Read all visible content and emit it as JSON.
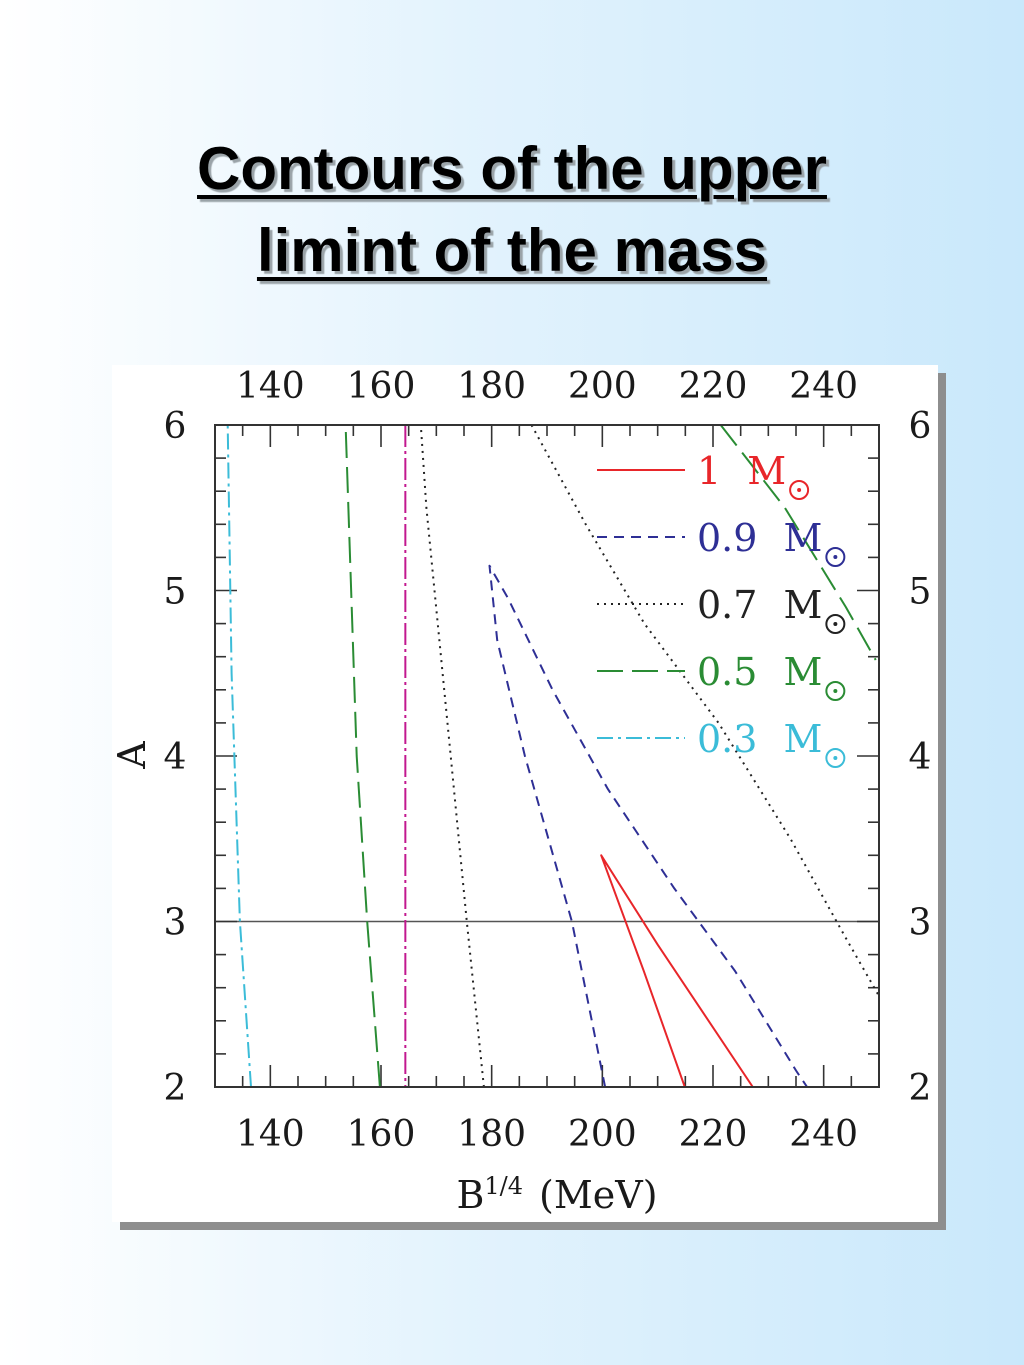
{
  "slide": {
    "title_line1": "Contours of the upper",
    "title_line2": "limint of the mass"
  },
  "chart_data": {
    "type": "line",
    "xlabel_main": "B",
    "xlabel_sup": "1/4",
    "xlabel_unit": "(MeV)",
    "ylabel": "A",
    "xlim": [
      130,
      250
    ],
    "ylim": [
      2,
      6
    ],
    "x_ticks": [
      140,
      160,
      180,
      200,
      220,
      240
    ],
    "y_ticks": [
      2,
      3,
      4,
      5,
      6
    ],
    "x_tick_labels": [
      "140",
      "160",
      "180",
      "200",
      "220",
      "240"
    ],
    "y_tick_labels": [
      "2",
      "3",
      "4",
      "5",
      "6"
    ],
    "mass_unit": "M",
    "reference_lines": [
      {
        "orientation": "horizontal",
        "value": 3,
        "color": "#555555"
      },
      {
        "orientation": "vertical",
        "value": 164.4,
        "color": "#c2188f"
      }
    ],
    "series": [
      {
        "name": "1",
        "color": "#e8262a",
        "dash": "none",
        "x": [
          214.9,
          207.5,
          199.8,
          210.0,
          227.2
        ],
        "y": [
          2.0,
          2.7,
          3.4,
          2.86,
          2.0
        ]
      },
      {
        "name": "0.9",
        "color": "#2e2f95",
        "dash": "10,7",
        "x": [
          200.5,
          194.5,
          186.0,
          181.0,
          179.6,
          183.0,
          191.0,
          201.0,
          213.0,
          224.0,
          235.0,
          237.0
        ],
        "y": [
          2.0,
          3.0,
          4.0,
          4.7,
          5.15,
          4.95,
          4.4,
          3.8,
          3.2,
          2.7,
          2.1,
          2.0
        ]
      },
      {
        "name": "0.7",
        "color": "#222222",
        "dash": "2,5",
        "x": [
          178.6,
          175.5,
          172.6,
          168.2,
          167.2
        ],
        "y": [
          2.0,
          3.0,
          4.0,
          5.5,
          6.0
        ]
      },
      {
        "name": "0.7",
        "color": "#222222",
        "dash": "2,5",
        "x": [
          187.2,
          197.0,
          207.6,
          221.0,
          234.0,
          244.0,
          250.0
        ],
        "y": [
          6.0,
          5.4,
          4.8,
          4.2,
          3.5,
          2.9,
          2.55
        ]
      },
      {
        "name": "0.5",
        "color": "#2a8c34",
        "dash": "26,9",
        "x": [
          159.8,
          157.5,
          155.6,
          153.6
        ],
        "y": [
          2.0,
          3.0,
          4.0,
          6.0
        ]
      },
      {
        "name": "0.5",
        "color": "#2a8c34",
        "dash": "26,9",
        "x": [
          221.4,
          233.0,
          244.0,
          249.4
        ],
        "y": [
          6.0,
          5.5,
          4.9,
          4.58
        ]
      },
      {
        "name": "0.3",
        "color": "#3bbcd8",
        "dash": "16,5,3,5",
        "x": [
          136.5,
          134.5,
          133.0,
          132.3
        ],
        "y": [
          2.0,
          3.0,
          4.5,
          6.0
        ]
      }
    ],
    "legend": [
      {
        "label": "1",
        "color": "#e8262a",
        "dash": "none"
      },
      {
        "label": "0.9",
        "color": "#2e2f95",
        "dash": "10,7"
      },
      {
        "label": "0.7",
        "color": "#222222",
        "dash": "2,5"
      },
      {
        "label": "0.5",
        "color": "#2a8c34",
        "dash": "26,9"
      },
      {
        "label": "0.3",
        "color": "#3bbcd8",
        "dash": "16,5,3,5"
      }
    ],
    "legend_placement": "top-right"
  }
}
